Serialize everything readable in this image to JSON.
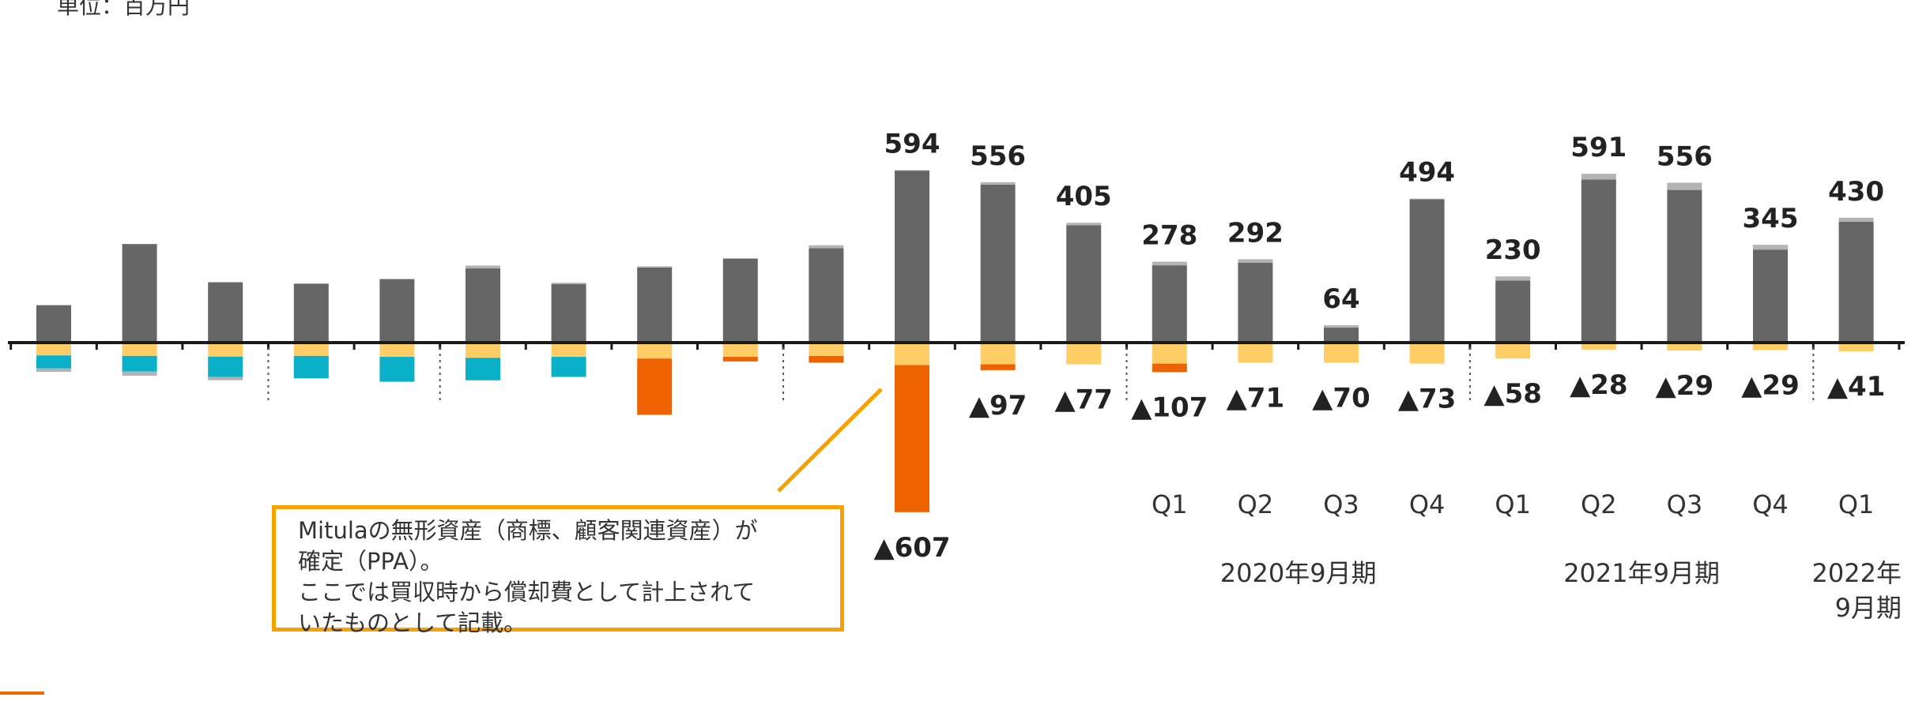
{
  "unit_label": "単位：百万円",
  "note": {
    "lines": [
      "Mitulaの無形資産（商標、顧客関連資産）が",
      "確定（PPA）。",
      "ここでは買収時から償却費として計上されて",
      "いたものとして記載。"
    ]
  },
  "colors": {
    "main": "#666666",
    "cap": "#b3b3b3",
    "neg_light": "#ffcd66",
    "teal": "#0aafc8",
    "orange": "#ee6300",
    "axis": "#1a1a1a",
    "note_border": "#f5a200"
  },
  "chart_data": {
    "type": "bar",
    "unit": "単位：百万円",
    "labels": {
      "positive": [
        "",
        "",
        "",
        "",
        "",
        "",
        "",
        "",
        "",
        "",
        "594",
        "556",
        "405",
        "278",
        "292",
        "64",
        "494",
        "230",
        "591",
        "556",
        "345",
        "430"
      ],
      "negative": [
        "",
        "",
        "",
        "",
        "",
        "",
        "",
        "",
        "",
        "",
        "▲607",
        "▲97",
        "▲77",
        "▲107",
        "▲71",
        "▲70",
        "▲73",
        "▲58",
        "▲28",
        "▲29",
        "▲29",
        "▲41"
      ]
    },
    "categories": [
      "",
      "",
      "",
      "",
      "",
      "",
      "",
      "",
      "",
      "",
      "",
      "",
      "",
      "Q1",
      "Q2",
      "Q3",
      "Q4",
      "Q1",
      "Q2",
      "Q3",
      "Q4",
      "Q1"
    ],
    "fiscal_periods": [
      "2020年9月期",
      "2021年9月期",
      "2022年\n9月期"
    ],
    "series": [
      {
        "name": "",
        "role": "main_positive",
        "values": [
          155,
          408,
          250,
          244,
          263,
          307,
          242,
          311,
          348,
          391,
          712,
          654,
          486,
          320,
          331,
          62,
          593,
          257,
          675,
          632,
          385,
          500
        ]
      },
      {
        "name": "",
        "role": "positive_cap",
        "values": [
          0,
          0,
          0,
          0,
          0,
          12,
          6,
          5,
          0,
          12,
          2,
          10,
          10,
          15,
          14,
          10,
          3,
          17,
          24,
          30,
          20,
          17
        ]
      },
      {
        "name": "",
        "role": "negative_light",
        "values": [
          -53,
          -55,
          -58,
          -55,
          -59,
          -63,
          -59,
          -66,
          -59,
          -55,
          -93,
          -90,
          -90,
          -87,
          -83,
          -83,
          -87,
          -66,
          -29,
          -33,
          -31,
          -36
        ]
      },
      {
        "name": "",
        "role": "negative_teal",
        "values": [
          -54,
          -65,
          -84,
          -93,
          -103,
          -93,
          -83,
          0,
          0,
          0,
          0,
          0,
          0,
          0,
          0,
          0,
          0,
          0,
          0,
          0,
          0,
          0
        ]
      },
      {
        "name": "",
        "role": "negative_orange",
        "values": [
          0,
          0,
          0,
          0,
          0,
          0,
          0,
          -233,
          -19,
          -28,
          -609,
          -24,
          0,
          -35,
          0,
          0,
          0,
          0,
          0,
          0,
          0,
          0
        ]
      },
      {
        "name": "",
        "role": "negative_cap",
        "values": [
          -14,
          -17,
          -14,
          0,
          0,
          0,
          0,
          0,
          0,
          0,
          0,
          0,
          0,
          0,
          0,
          0,
          0,
          0,
          0,
          0,
          0,
          0
        ]
      }
    ],
    "period_dividers_after": [
      2,
      4,
      8,
      12,
      16,
      20
    ],
    "grid": false,
    "legend": "none"
  }
}
